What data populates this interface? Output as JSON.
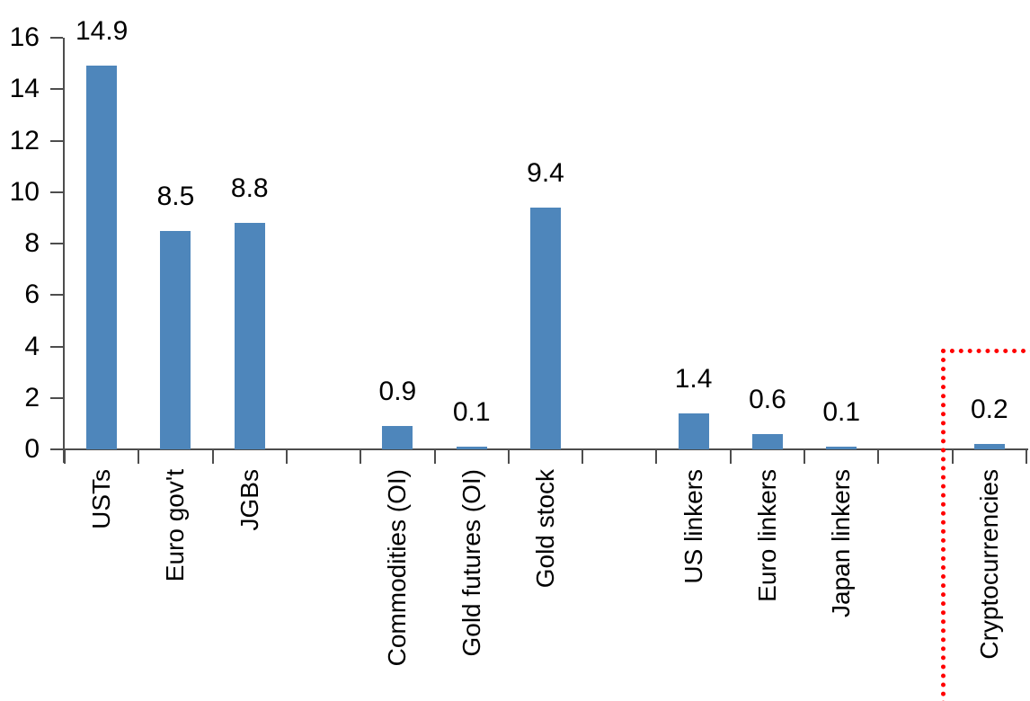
{
  "chart_data": {
    "type": "bar",
    "title": "",
    "xlabel": "",
    "ylabel": "",
    "ylim": [
      0,
      16
    ],
    "yticks": [
      0,
      2,
      4,
      6,
      8,
      10,
      12,
      14,
      16
    ],
    "grid": false,
    "legend": false,
    "bar_color": "#4E86BB",
    "axis_color": "#4D4D4D",
    "text_color": "#000000",
    "categories": [
      "USTs",
      "Euro gov't",
      "JGBs",
      "",
      "Commodities (OI)",
      "Gold futures (OI)",
      "Gold stock",
      "",
      "US linkers",
      "Euro linkers",
      "Japan linkers",
      "",
      "Cryptocurrencies"
    ],
    "values": [
      14.9,
      8.5,
      8.8,
      null,
      0.9,
      0.1,
      9.4,
      null,
      1.4,
      0.6,
      0.1,
      null,
      0.2
    ],
    "data_labels": [
      "14.9",
      "8.5",
      "8.8",
      "",
      "0.9",
      "0.1",
      "9.4",
      "",
      "1.4",
      "0.6",
      "0.1",
      "",
      "0.2"
    ],
    "highlight": {
      "category": "Cryptocurrencies",
      "shape": "dotted-rectangle",
      "color": "#FF0000"
    }
  }
}
